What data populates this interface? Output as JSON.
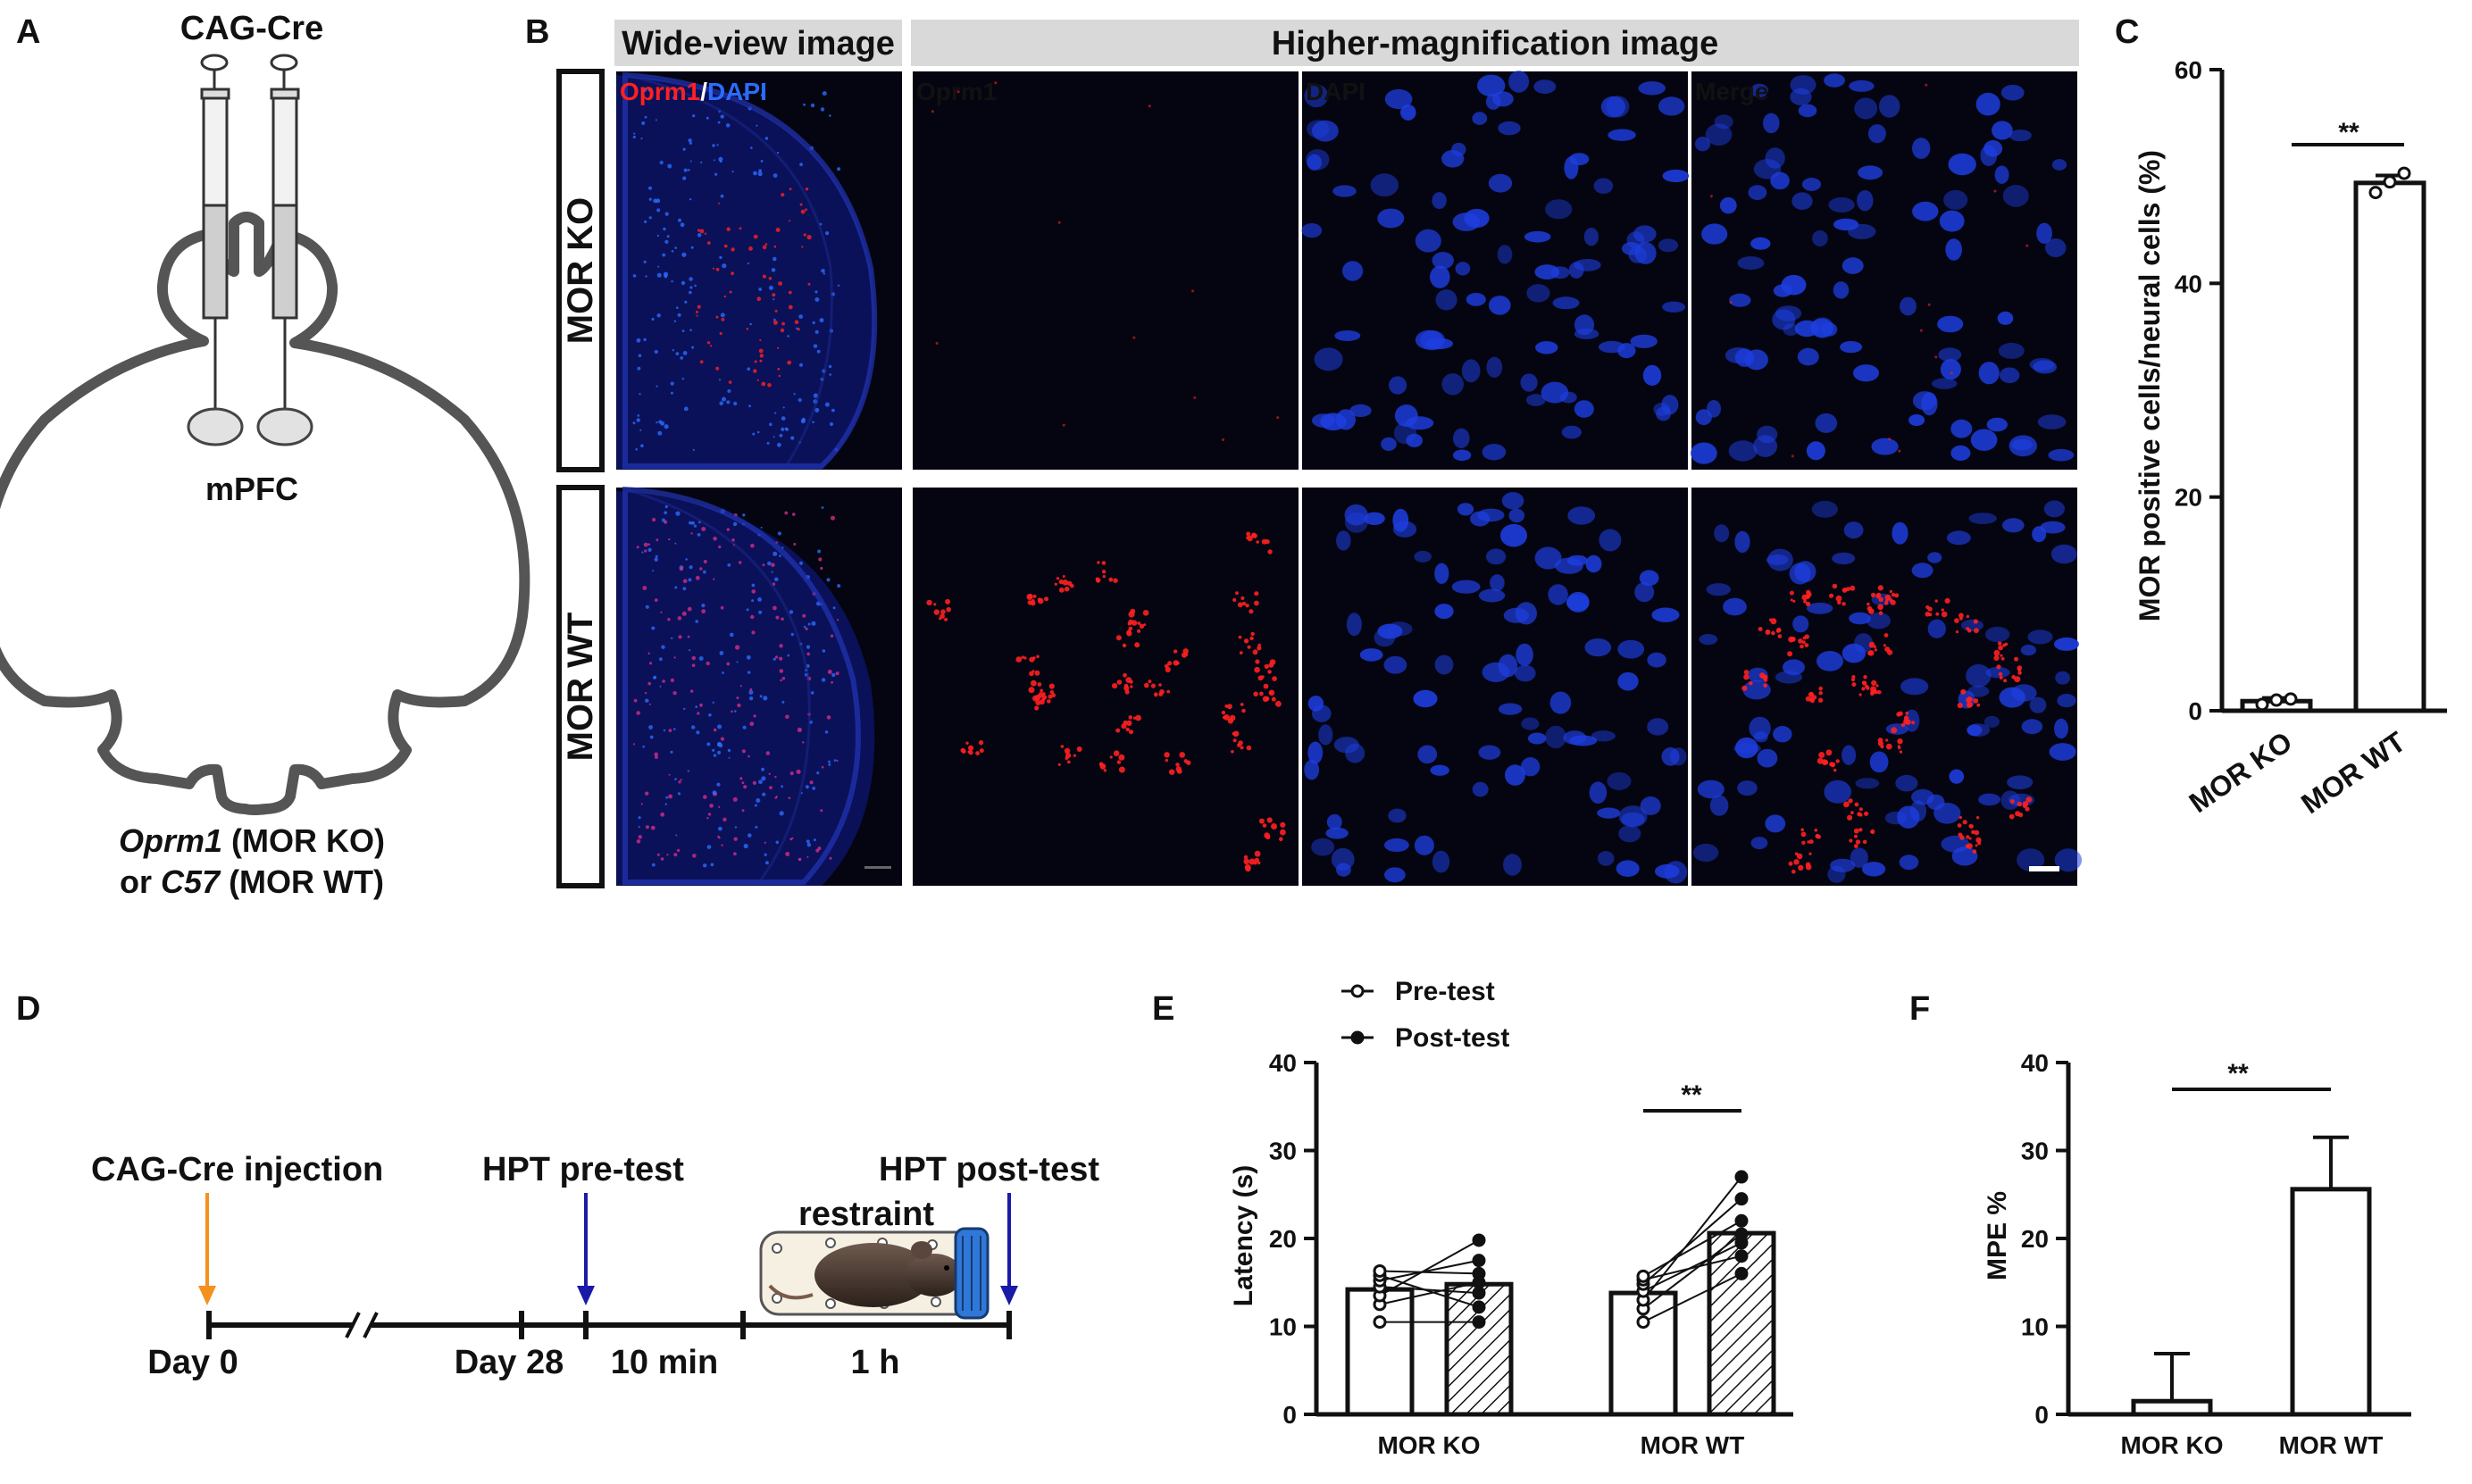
{
  "panels": {
    "A": "A",
    "B": "B",
    "C": "C",
    "D": "D",
    "E": "E",
    "F": "F"
  },
  "panelA": {
    "virus": "CAG-Cre",
    "region": "mPFC",
    "line1_gene": "Oprm1",
    "line1_rest": " (MOR KO)",
    "line2_pre": "or ",
    "line2_gene": "C57",
    "line2_rest": " (MOR WT)"
  },
  "panelB": {
    "header_wide": "Wide-view image",
    "header_high": "Higher-magnification image",
    "row_ko": "MOR KO",
    "row_wt": "MOR WT",
    "label_oprm1": "Oprm1",
    "label_slash": "/",
    "label_dapi": "DAPI",
    "label_merge": "Merge",
    "colors": {
      "oprm1": "#ff2020",
      "dapi": "#2a6cff",
      "merge": "#ffffff",
      "tissue_bg": "#050512"
    }
  },
  "panelC": {
    "ylabel": "MOR positive cells/neural cells (%)",
    "significance": "**",
    "chart_data": {
      "type": "bar",
      "categories": [
        "MOR KO",
        "MOR WT"
      ],
      "values": [
        0.9,
        49.4
      ],
      "errors": [
        0.3,
        0.7
      ],
      "points": [
        [
          0.6,
          1.0,
          1.1
        ],
        [
          48.5,
          49.5,
          50.3
        ]
      ],
      "ylabel": "MOR positive cells/neural cells (%)",
      "ylim": [
        0,
        60
      ],
      "yticks": [
        0,
        20,
        40,
        60
      ]
    }
  },
  "panelD": {
    "injection": "CAG-Cre injection",
    "pretest": "HPT pre-test",
    "posttest": "HPT post-test",
    "restraint": "restraint",
    "day0": "Day 0",
    "day28": "Day 28",
    "interval1": "10 min",
    "interval2": "1 h",
    "colors": {
      "injection_arrow": "#f5901e",
      "test_arrow": "#1a1aa8",
      "restraint": "#e81c1c"
    }
  },
  "panelE": {
    "legend_pre": "Pre-test",
    "legend_post": "Post-test",
    "ylabel": "Latency (s)",
    "significance": "**",
    "chart_data": {
      "type": "bar",
      "categories": [
        "MOR KO",
        "MOR WT"
      ],
      "series": [
        {
          "name": "Pre-test",
          "values": [
            14.2,
            13.8
          ],
          "points": [
            [
              10.5,
              12.5,
              13.5,
              14.5,
              15.2,
              15.8,
              16.3
            ],
            [
              10.5,
              12.0,
              13.0,
              14.0,
              14.8,
              15.3,
              15.7
            ]
          ]
        },
        {
          "name": "Post-test",
          "values": [
            14.8,
            20.6
          ],
          "points": [
            [
              10.5,
              12.2,
              13.8,
              15.0,
              16.0,
              17.5,
              19.8
            ],
            [
              16.0,
              18.0,
              19.5,
              20.5,
              22.0,
              24.5,
              27.0
            ]
          ]
        }
      ],
      "ylabel": "Latency (s)",
      "ylim": [
        0,
        40
      ],
      "yticks": [
        0,
        10,
        20,
        30,
        40
      ]
    }
  },
  "panelF": {
    "ylabel": "MPE %",
    "significance": "**",
    "chart_data": {
      "type": "bar",
      "categories": [
        "MOR KO",
        "MOR WT"
      ],
      "values": [
        1.5,
        25.6
      ],
      "errors": [
        5.4,
        5.9
      ],
      "ylabel": "MPE %",
      "ylim": [
        0,
        40
      ],
      "yticks": [
        0,
        10,
        20,
        30,
        40
      ]
    }
  }
}
